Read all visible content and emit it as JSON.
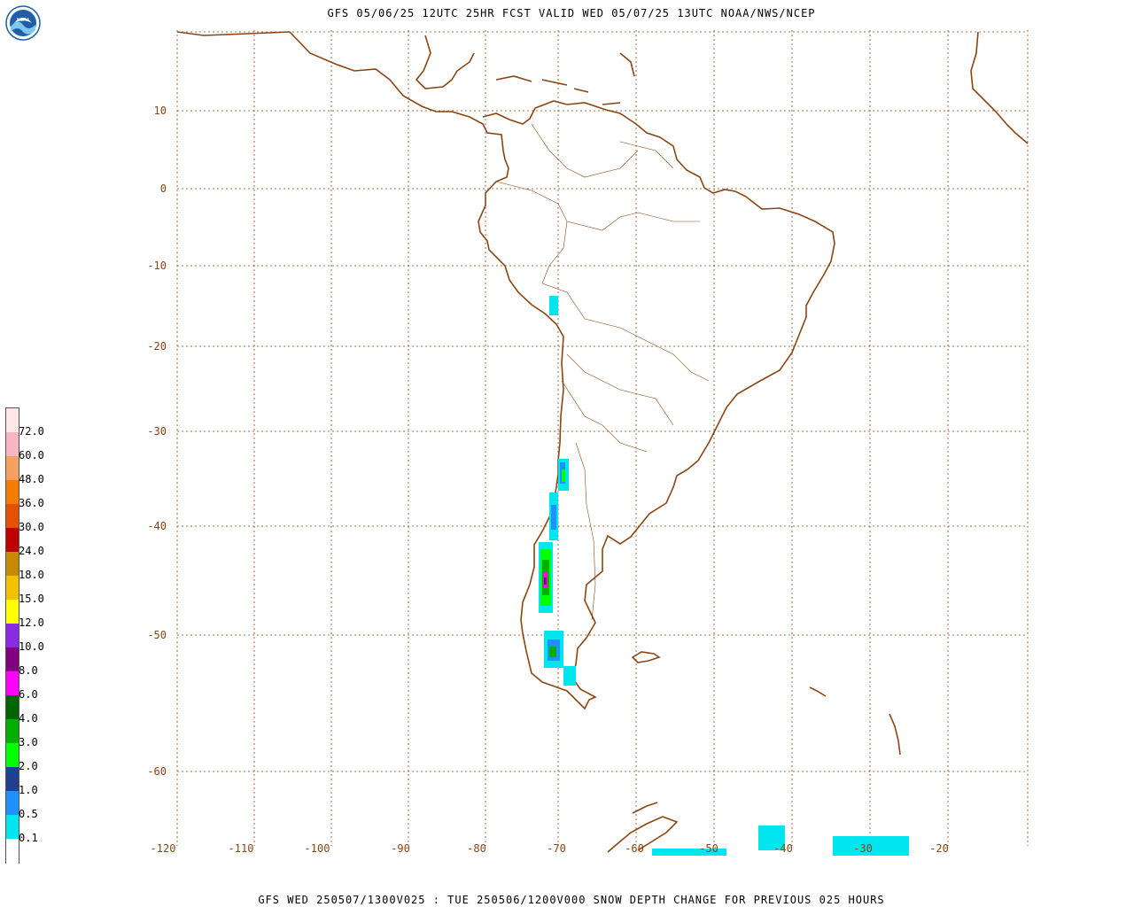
{
  "header": {
    "title": "GFS 05/06/25 12UTC 25HR FCST VALID WED 05/07/25 13UTC NOAA/NWS/NCEP",
    "logo_text": "NOAA"
  },
  "footer": {
    "caption": "GFS WED 250507/1300V025 : TUE 250506/1200V000 SNOW DEPTH CHANGE FOR PREVIOUS 025 HOURS"
  },
  "map": {
    "coastline_color": "#8b4513",
    "grid_color": "#8b4513",
    "lat_labels": [
      "10",
      "0",
      "-10",
      "-20",
      "-30",
      "-40",
      "-50",
      "-60"
    ],
    "lon_labels": [
      "-120",
      "-110",
      "-100",
      "-90",
      "-80",
      "-70",
      "-60",
      "-50",
      "-40",
      "-30",
      "-20"
    ]
  },
  "legend": {
    "labels": [
      "72.0",
      "60.0",
      "48.0",
      "36.0",
      "30.0",
      "24.0",
      "18.0",
      "15.0",
      "12.0",
      "10.0",
      "8.0",
      "6.0",
      "4.0",
      "3.0",
      "2.0",
      "1.0",
      "0.5",
      "0.1"
    ],
    "colors": [
      "#fde7e7",
      "#f7b6c2",
      "#f7a160",
      "#f57c00",
      "#e65100",
      "#c00000",
      "#c88a00",
      "#f2c200",
      "#ffff00",
      "#8a2be2",
      "#800080",
      "#ff00ff",
      "#006400",
      "#00b000",
      "#00ff00",
      "#1f3f8f",
      "#1e90ff",
      "#00e5ee",
      "#ffffff"
    ]
  }
}
